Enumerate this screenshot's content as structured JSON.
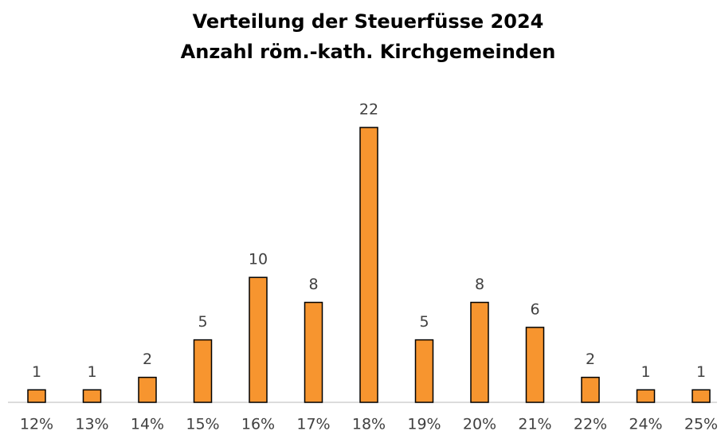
{
  "chart_data": {
    "type": "bar",
    "title": "Verteilung der Steuerfüsse 2024",
    "subtitle": "Anzahl röm.-kath. Kirchgemeinden",
    "categories": [
      "12%",
      "13%",
      "14%",
      "15%",
      "16%",
      "17%",
      "18%",
      "19%",
      "20%",
      "21%",
      "22%",
      "24%",
      "25%"
    ],
    "values": [
      1,
      1,
      2,
      5,
      10,
      8,
      22,
      5,
      8,
      6,
      2,
      1,
      1
    ],
    "color": "#f7952f"
  }
}
